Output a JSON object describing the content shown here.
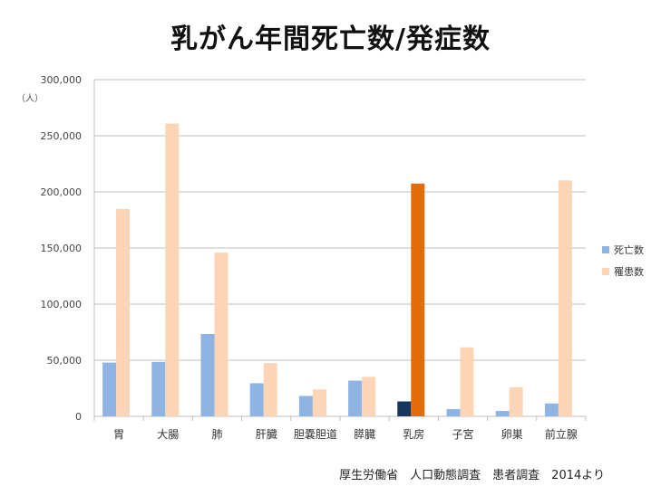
{
  "chart_data": {
    "type": "bar",
    "title": "乳がん年間死亡数/発症数",
    "ylabel_unit": "（人）",
    "ylim": [
      0,
      300000
    ],
    "yticks": [
      0,
      50000,
      100000,
      150000,
      200000,
      250000,
      300000
    ],
    "ytick_labels": [
      "0",
      "50,000",
      "100,000",
      "150,000",
      "200,000",
      "250,000",
      "300,000"
    ],
    "categories": [
      "胃",
      "大腸",
      "肺",
      "肝臓",
      "胆嚢胆道",
      "膵臓",
      "乳房",
      "子宮",
      "卵巣",
      "前立腺"
    ],
    "series": [
      {
        "name": "死亡数",
        "color": "#8eb4e3",
        "values": [
          47900,
          48500,
          73400,
          29500,
          18200,
          31800,
          13300,
          6400,
          4800,
          11500
        ]
      },
      {
        "name": "罹患数",
        "color": "#fbd5b5",
        "values": [
          184800,
          260900,
          145900,
          47400,
          24000,
          35200,
          207400,
          61500,
          26000,
          210300
        ]
      }
    ],
    "highlight": {
      "category": "乳房",
      "colors": [
        "#17365d",
        "#e36c09"
      ]
    },
    "legend_position": "right",
    "source": "厚生労働省　人口動態調査　患者調査　2014より"
  }
}
